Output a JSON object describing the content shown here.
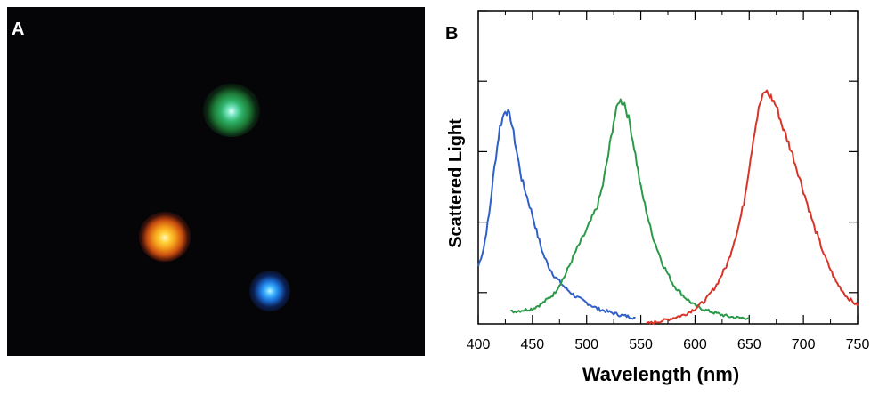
{
  "panel_a": {
    "label": "A",
    "particles": [
      {
        "name": "green",
        "color": "#2fb36a"
      },
      {
        "name": "orange",
        "color": "#f39a1a"
      },
      {
        "name": "blue",
        "color": "#1a6fd6"
      }
    ]
  },
  "chart_data": {
    "type": "line",
    "panel_label": "B",
    "title": "",
    "xlabel": "Wavelength (nm)",
    "ylabel": "Scattered Light",
    "xlim": [
      400,
      750
    ],
    "ylim": [
      0,
      1
    ],
    "x_ticks": [
      400,
      450,
      500,
      550,
      600,
      650,
      700,
      750
    ],
    "grid": false,
    "series": [
      {
        "color": "#2f5fc8",
        "x": [
          400,
          405,
          410,
          415,
          420,
          425,
          430,
          435,
          440,
          445,
          450,
          455,
          460,
          465,
          470,
          480,
          490,
          500,
          510,
          520,
          530,
          545
        ],
        "y": [
          0.19,
          0.25,
          0.36,
          0.52,
          0.65,
          0.71,
          0.68,
          0.58,
          0.48,
          0.42,
          0.36,
          0.29,
          0.23,
          0.19,
          0.16,
          0.12,
          0.09,
          0.07,
          0.05,
          0.04,
          0.03,
          0.02
        ]
      },
      {
        "color": "#2a9a48",
        "x": [
          430,
          440,
          450,
          460,
          470,
          480,
          490,
          500,
          510,
          515,
          520,
          525,
          530,
          535,
          540,
          545,
          550,
          560,
          570,
          580,
          590,
          600,
          610,
          620,
          630,
          640,
          650
        ],
        "y": [
          0.04,
          0.045,
          0.05,
          0.07,
          0.1,
          0.16,
          0.24,
          0.31,
          0.39,
          0.46,
          0.56,
          0.67,
          0.74,
          0.73,
          0.66,
          0.56,
          0.45,
          0.3,
          0.2,
          0.13,
          0.09,
          0.06,
          0.045,
          0.035,
          0.025,
          0.02,
          0.02
        ]
      },
      {
        "color": "#d8342a",
        "x": [
          555,
          570,
          580,
          590,
          600,
          610,
          620,
          630,
          640,
          645,
          650,
          655,
          660,
          665,
          670,
          675,
          680,
          690,
          700,
          710,
          720,
          730,
          740,
          750
        ],
        "y": [
          0.0,
          0.01,
          0.02,
          0.03,
          0.05,
          0.08,
          0.13,
          0.2,
          0.32,
          0.4,
          0.52,
          0.64,
          0.73,
          0.77,
          0.75,
          0.72,
          0.66,
          0.56,
          0.44,
          0.32,
          0.22,
          0.14,
          0.09,
          0.06
        ]
      }
    ]
  }
}
